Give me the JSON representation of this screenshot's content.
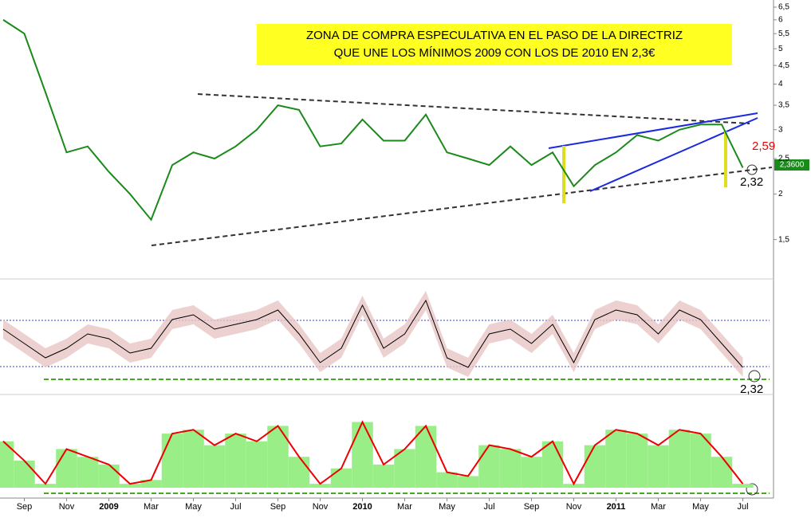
{
  "chart_data": [
    {
      "type": "line",
      "title": [
        "ZONA DE COMPRA ESPECULATIVA EN EL PASO DE LA DIRECTRIZ",
        "QUE UNE LOS MÍNIMOS 2009 CON LOS DE 2010 EN 2,3€"
      ],
      "categories": [
        null,
        "Sep",
        null,
        "Nov",
        null,
        "2009",
        null,
        "Mar",
        null,
        "May",
        null,
        "Jul",
        null,
        "Sep",
        null,
        "Nov",
        null,
        "2010",
        null,
        "Mar",
        null,
        "May",
        null,
        "Jul",
        null,
        "Sep",
        null,
        "Nov",
        null,
        "2011",
        null,
        "Mar",
        null,
        "May",
        null,
        "Jul"
      ],
      "series": [
        {
          "color": "#1a8a1a",
          "values": [
            6.0,
            5.5,
            3.8,
            2.6,
            2.7,
            2.3,
            2.0,
            1.7,
            2.4,
            2.6,
            2.5,
            2.7,
            3.0,
            3.5,
            3.4,
            2.7,
            2.75,
            3.2,
            2.8,
            2.8,
            3.3,
            2.6,
            2.5,
            2.4,
            2.7,
            2.4,
            2.6,
            2.1,
            2.4,
            2.6,
            2.9,
            2.8,
            3.0,
            3.1,
            3.1,
            2.36
          ]
        }
      ],
      "log_scale": true,
      "ylim": [
        1.2,
        6.8
      ],
      "yticks": [
        {
          "value": 1.5,
          "label": "1,5"
        },
        2,
        {
          "value": 2.5,
          "label": "2,5"
        },
        3,
        {
          "value": 3.5,
          "label": "3,5"
        },
        4,
        {
          "value": 4.5,
          "label": "4,5"
        },
        5,
        {
          "value": 5.5,
          "label": "5,5"
        },
        6,
        {
          "value": 6.5,
          "label": "6,5"
        }
      ],
      "annotations": [
        "2,59",
        "2,32"
      ],
      "price_label": "2,3600"
    },
    {
      "type": "line",
      "series": [
        {
          "color": "#000000",
          "values": [
            60,
            45,
            30,
            40,
            55,
            50,
            35,
            40,
            70,
            75,
            60,
            65,
            70,
            80,
            55,
            25,
            40,
            85,
            40,
            55,
            90,
            30,
            20,
            55,
            60,
            45,
            65,
            25,
            70,
            80,
            75,
            55,
            80,
            70,
            45,
            20
          ]
        }
      ],
      "ylim": [
        0,
        100
      ],
      "annotations": [
        "2,32"
      ]
    },
    {
      "type": "bar",
      "series": [
        {
          "color": "#99ee88",
          "line_color": "#ee0000",
          "values": [
            60,
            35,
            5,
            50,
            40,
            30,
            5,
            10,
            70,
            75,
            55,
            70,
            60,
            80,
            40,
            5,
            25,
            85,
            30,
            50,
            80,
            20,
            15,
            55,
            50,
            40,
            60,
            5,
            55,
            75,
            70,
            55,
            75,
            70,
            40,
            5
          ]
        }
      ],
      "ylim": [
        0,
        100
      ]
    }
  ]
}
